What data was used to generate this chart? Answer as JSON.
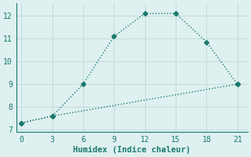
{
  "title": "",
  "xlabel": "Humidex (Indice chaleur)",
  "background_color": "#dff0f0",
  "line_color": "#1a7a6e",
  "grid_color": "#c0d8d8",
  "line1_x": [
    0,
    3,
    6,
    9,
    12,
    15,
    18,
    21
  ],
  "line1_y": [
    7.3,
    7.6,
    9.0,
    11.1,
    12.1,
    12.1,
    10.85,
    9.0
  ],
  "line2_x": [
    0,
    3,
    21
  ],
  "line2_y": [
    7.3,
    7.6,
    9.0
  ],
  "xlim": [
    -0.5,
    22
  ],
  "ylim": [
    6.9,
    12.55
  ],
  "xticks": [
    0,
    3,
    6,
    9,
    12,
    15,
    18,
    21
  ],
  "yticks": [
    7,
    8,
    9,
    10,
    11,
    12
  ],
  "marker": "D",
  "markersize": 3.0,
  "linewidth": 1.0,
  "fontsize_ticks": 7,
  "fontsize_label": 7.5
}
